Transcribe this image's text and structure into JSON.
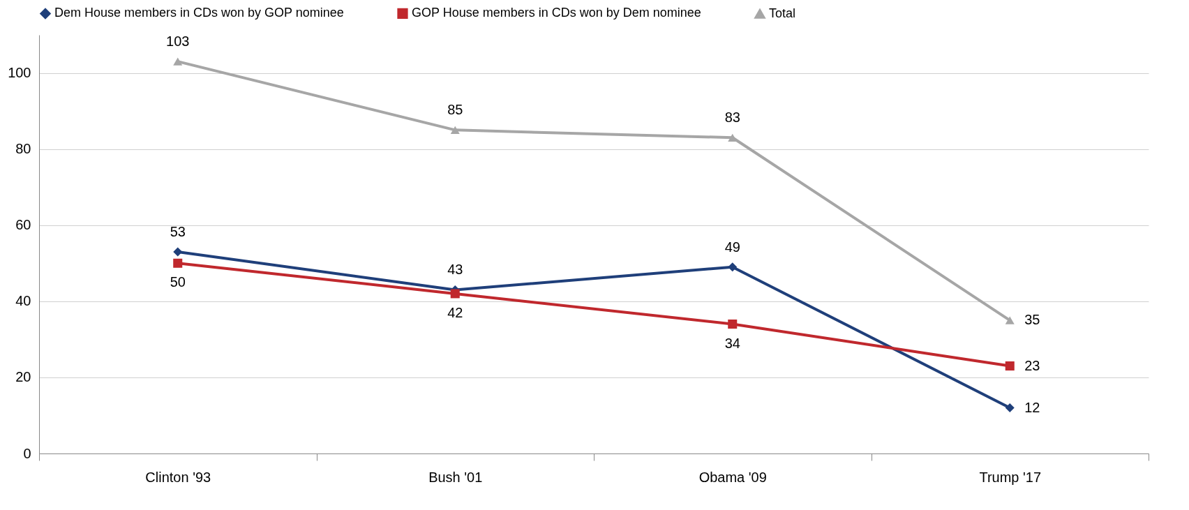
{
  "chart_data": {
    "type": "line",
    "categories": [
      "Clinton '93",
      "Bush '01",
      "Obama '09",
      "Trump '17"
    ],
    "series": [
      {
        "name": "Dem House members in CDs won by GOP nominee",
        "color": "#1f3f7a",
        "marker": "diamond",
        "values": [
          53,
          43,
          49,
          12
        ]
      },
      {
        "name": "GOP House members in CDs won by Dem nominee",
        "color": "#c0282d",
        "marker": "square",
        "values": [
          50,
          42,
          34,
          23
        ]
      },
      {
        "name": "Total",
        "color": "#a6a6a6",
        "marker": "triangle",
        "values": [
          103,
          85,
          83,
          35
        ]
      }
    ],
    "ylim": [
      0,
      110
    ],
    "yticks": [
      0,
      20,
      40,
      60,
      80,
      100
    ],
    "grid": "y",
    "legend": "top",
    "data_labels": true
  }
}
